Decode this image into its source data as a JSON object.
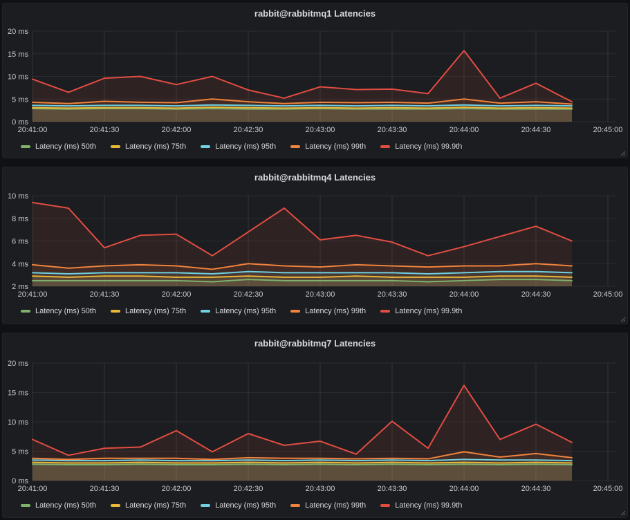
{
  "page": {
    "background": "#101114",
    "panel_background": "#1b1d20"
  },
  "legend_labels": [
    "Latency (ms) 50th",
    "Latency (ms) 75th",
    "Latency (ms) 95th",
    "Latency (ms) 99th",
    "Latency (ms) 99.9th"
  ],
  "series_colors": {
    "p50": "#7EB26D",
    "p75": "#EAB839",
    "p95": "#6ED0E0",
    "p99": "#EF843C",
    "p999": "#E24D42"
  },
  "chart_data": [
    {
      "type": "area",
      "title": "rabbit@rabbitmq1 Latencies",
      "x": [
        "20:41:00",
        "20:41:15",
        "20:41:30",
        "20:41:45",
        "20:42:00",
        "20:42:15",
        "20:42:30",
        "20:42:45",
        "20:43:00",
        "20:43:15",
        "20:43:30",
        "20:43:45",
        "20:44:00",
        "20:44:15",
        "20:44:30",
        "20:44:45"
      ],
      "x_tick_labels": [
        "20:41:00",
        "20:41:30",
        "20:42:00",
        "20:42:30",
        "20:43:00",
        "20:43:30",
        "20:44:00",
        "20:44:30",
        "20:45:00"
      ],
      "y_ticks": [
        0,
        5,
        10,
        15,
        20
      ],
      "y_tick_labels": [
        "0 ms",
        "5 ms",
        "10 ms",
        "15 ms",
        "20 ms"
      ],
      "ylim": [
        0,
        20
      ],
      "grid": true,
      "fill_opacity": 0.1,
      "legend_position": "bottom-left",
      "series": [
        {
          "name": "Latency (ms) 50th",
          "color": "#7EB26D",
          "values": [
            2.9,
            2.8,
            2.9,
            2.9,
            2.8,
            2.9,
            2.8,
            2.8,
            2.9,
            2.8,
            2.8,
            2.8,
            2.9,
            2.8,
            2.8,
            2.8
          ]
        },
        {
          "name": "Latency (ms) 75th",
          "color": "#EAB839",
          "values": [
            3.1,
            3.0,
            3.1,
            3.1,
            3.0,
            3.2,
            3.1,
            3.0,
            3.1,
            3.0,
            3.1,
            3.0,
            3.2,
            3.0,
            3.1,
            3.0
          ]
        },
        {
          "name": "Latency (ms) 95th",
          "color": "#6ED0E0",
          "values": [
            3.6,
            3.5,
            3.6,
            3.6,
            3.5,
            3.7,
            3.6,
            3.5,
            3.6,
            3.5,
            3.6,
            3.5,
            3.7,
            3.5,
            3.6,
            3.5
          ]
        },
        {
          "name": "Latency (ms) 99th",
          "color": "#EF843C",
          "values": [
            4.3,
            4.0,
            4.5,
            4.3,
            4.2,
            5.0,
            4.4,
            4.0,
            4.3,
            4.2,
            4.3,
            4.1,
            5.0,
            4.1,
            4.4,
            3.9
          ]
        },
        {
          "name": "Latency (ms) 99.9th",
          "color": "#E24D42",
          "values": [
            9.4,
            6.5,
            9.6,
            10.0,
            8.2,
            10.0,
            7.0,
            5.2,
            7.7,
            7.1,
            7.2,
            6.2,
            15.7,
            5.2,
            8.5,
            4.4
          ]
        }
      ]
    },
    {
      "type": "area",
      "title": "rabbit@rabbitmq4 Latencies",
      "x": [
        "20:41:00",
        "20:41:15",
        "20:41:30",
        "20:41:45",
        "20:42:00",
        "20:42:15",
        "20:42:30",
        "20:42:45",
        "20:43:00",
        "20:43:15",
        "20:43:30",
        "20:43:45",
        "20:44:00",
        "20:44:15",
        "20:44:30",
        "20:44:45"
      ],
      "x_tick_labels": [
        "20:41:00",
        "20:41:30",
        "20:42:00",
        "20:42:30",
        "20:43:00",
        "20:43:30",
        "20:44:00",
        "20:44:30",
        "20:45:00"
      ],
      "y_ticks": [
        2,
        4,
        6,
        8,
        10
      ],
      "y_tick_labels": [
        "2 ms",
        "4 ms",
        "6 ms",
        "8 ms",
        "10 ms"
      ],
      "ylim": [
        2,
        10
      ],
      "grid": true,
      "fill_opacity": 0.1,
      "legend_position": "bottom-left",
      "series": [
        {
          "name": "Latency (ms) 50th",
          "color": "#7EB26D",
          "values": [
            2.5,
            2.5,
            2.5,
            2.5,
            2.5,
            2.4,
            2.6,
            2.5,
            2.5,
            2.5,
            2.5,
            2.4,
            2.5,
            2.6,
            2.6,
            2.5
          ]
        },
        {
          "name": "Latency (ms) 75th",
          "color": "#EAB839",
          "values": [
            2.9,
            2.8,
            2.9,
            2.9,
            2.8,
            2.8,
            2.9,
            2.8,
            2.8,
            2.9,
            2.8,
            2.8,
            2.8,
            2.9,
            2.9,
            2.8
          ]
        },
        {
          "name": "Latency (ms) 95th",
          "color": "#6ED0E0",
          "values": [
            3.2,
            3.1,
            3.2,
            3.2,
            3.2,
            3.1,
            3.3,
            3.2,
            3.2,
            3.2,
            3.2,
            3.1,
            3.2,
            3.3,
            3.3,
            3.2
          ]
        },
        {
          "name": "Latency (ms) 99th",
          "color": "#EF843C",
          "values": [
            3.9,
            3.6,
            3.8,
            3.9,
            3.8,
            3.5,
            4.0,
            3.8,
            3.7,
            3.9,
            3.8,
            3.7,
            3.8,
            3.8,
            4.0,
            3.8
          ]
        },
        {
          "name": "Latency (ms) 99.9th",
          "color": "#E24D42",
          "values": [
            9.4,
            8.9,
            5.4,
            6.5,
            6.6,
            4.7,
            6.8,
            8.9,
            6.1,
            6.5,
            5.9,
            4.7,
            5.5,
            6.4,
            7.3,
            6.0
          ]
        }
      ]
    },
    {
      "type": "area",
      "title": "rabbit@rabbitmq7 Latencies",
      "x": [
        "20:41:00",
        "20:41:15",
        "20:41:30",
        "20:41:45",
        "20:42:00",
        "20:42:15",
        "20:42:30",
        "20:42:45",
        "20:43:00",
        "20:43:15",
        "20:43:30",
        "20:43:45",
        "20:44:00",
        "20:44:15",
        "20:44:30",
        "20:44:45"
      ],
      "x_tick_labels": [
        "20:41:00",
        "20:41:30",
        "20:42:00",
        "20:42:30",
        "20:43:00",
        "20:43:30",
        "20:44:00",
        "20:44:30",
        "20:45:00"
      ],
      "y_ticks": [
        0,
        5,
        10,
        15,
        20
      ],
      "y_tick_labels": [
        "0 ms",
        "5 ms",
        "10 ms",
        "15 ms",
        "20 ms"
      ],
      "ylim": [
        0,
        20
      ],
      "grid": true,
      "fill_opacity": 0.1,
      "legend_position": "bottom-left",
      "series": [
        {
          "name": "Latency (ms) 50th",
          "color": "#7EB26D",
          "values": [
            2.8,
            2.7,
            2.7,
            2.8,
            2.7,
            2.7,
            2.8,
            2.7,
            2.8,
            2.7,
            2.8,
            2.7,
            2.8,
            2.7,
            2.8,
            2.7
          ]
        },
        {
          "name": "Latency (ms) 75th",
          "color": "#EAB839",
          "values": [
            3.1,
            3.0,
            3.0,
            3.1,
            3.0,
            3.0,
            3.1,
            3.0,
            3.1,
            3.0,
            3.1,
            3.0,
            3.1,
            3.0,
            3.1,
            3.0
          ]
        },
        {
          "name": "Latency (ms) 95th",
          "color": "#6ED0E0",
          "values": [
            3.5,
            3.4,
            3.4,
            3.5,
            3.4,
            3.4,
            3.5,
            3.4,
            3.5,
            3.4,
            3.5,
            3.4,
            3.6,
            3.5,
            3.5,
            3.4
          ]
        },
        {
          "name": "Latency (ms) 99th",
          "color": "#EF843C",
          "values": [
            3.8,
            3.6,
            3.8,
            3.8,
            3.8,
            3.6,
            3.9,
            3.8,
            3.8,
            3.7,
            3.8,
            3.7,
            4.9,
            4.0,
            4.6,
            3.9
          ]
        },
        {
          "name": "Latency (ms) 99.9th",
          "color": "#E24D42",
          "values": [
            7.0,
            4.3,
            5.5,
            5.7,
            8.5,
            4.9,
            8.0,
            6.0,
            6.7,
            4.5,
            10.1,
            5.5,
            16.2,
            7.0,
            9.6,
            6.5
          ]
        }
      ]
    }
  ]
}
